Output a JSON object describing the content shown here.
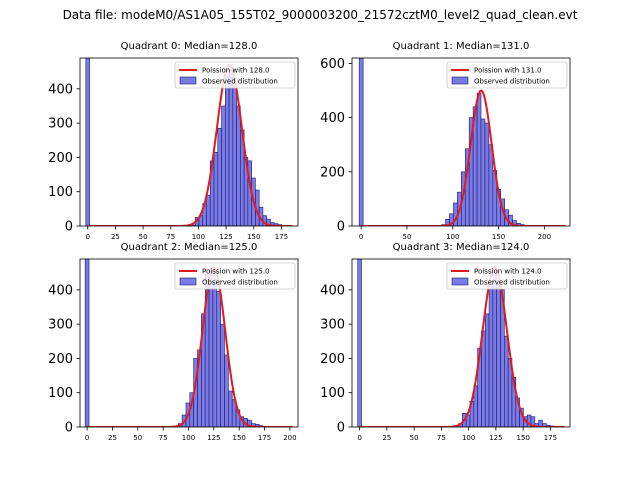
{
  "figure": {
    "suptitle": "Data file: modeM0/AS1A05_155T02_9000003200_21572cztM0_level2_quad_clean.evt"
  },
  "colors": {
    "bar_fill": "#7b7be6",
    "bar_edge": "#1a1a6e",
    "poisson_line": "#e31a1c",
    "axis": "#000000"
  },
  "chart_data": [
    {
      "type": "bar",
      "title": "Quadrant 0: Median=128.0",
      "xlim": [
        -7,
        190
      ],
      "ylim": [
        0,
        490
      ],
      "xticks": [
        0,
        25,
        50,
        75,
        100,
        125,
        150,
        175
      ],
      "yticks": [
        0,
        100,
        200,
        300,
        400
      ],
      "bin_width": 3.4,
      "legend": {
        "location": "top-right",
        "line_label": "Poission with 128.0",
        "bar_label": "Observed distribution"
      },
      "poisson_mean": 128,
      "poisson_peak": 470,
      "bins": [
        {
          "x": 0,
          "count": 490
        },
        {
          "x": 92,
          "count": 1
        },
        {
          "x": 95.4,
          "count": 3
        },
        {
          "x": 98.8,
          "count": 25
        },
        {
          "x": 102.2,
          "count": 30
        },
        {
          "x": 105.6,
          "count": 65
        },
        {
          "x": 109,
          "count": 90
        },
        {
          "x": 112.4,
          "count": 190
        },
        {
          "x": 115.8,
          "count": 215
        },
        {
          "x": 119.2,
          "count": 285
        },
        {
          "x": 122.6,
          "count": 350
        },
        {
          "x": 126,
          "count": 440
        },
        {
          "x": 129.4,
          "count": 470
        },
        {
          "x": 132.8,
          "count": 410
        },
        {
          "x": 136.2,
          "count": 350
        },
        {
          "x": 139.6,
          "count": 280
        },
        {
          "x": 143,
          "count": 200
        },
        {
          "x": 146.4,
          "count": 190
        },
        {
          "x": 149.8,
          "count": 140
        },
        {
          "x": 153.2,
          "count": 105
        },
        {
          "x": 156.6,
          "count": 55
        },
        {
          "x": 160,
          "count": 30
        },
        {
          "x": 163.4,
          "count": 20
        },
        {
          "x": 166.8,
          "count": 10
        },
        {
          "x": 170.2,
          "count": 7
        },
        {
          "x": 173.6,
          "count": 4
        },
        {
          "x": 177,
          "count": 2
        }
      ]
    },
    {
      "type": "bar",
      "title": "Quadrant 1: Median=131.0",
      "xlim": [
        -10,
        228
      ],
      "ylim": [
        0,
        620
      ],
      "xticks": [
        0,
        50,
        100,
        150,
        200
      ],
      "yticks": [
        0,
        200,
        400,
        600
      ],
      "bin_width": 4.3,
      "legend": {
        "location": "top-right",
        "line_label": "Poission with 131.0",
        "bar_label": "Observed distribution"
      },
      "poisson_mean": 131,
      "poisson_peak": 500,
      "bins": [
        {
          "x": 0,
          "count": 620
        },
        {
          "x": 90,
          "count": 5
        },
        {
          "x": 94.3,
          "count": 25
        },
        {
          "x": 98.6,
          "count": 45
        },
        {
          "x": 102.9,
          "count": 85
        },
        {
          "x": 107.2,
          "count": 125
        },
        {
          "x": 111.5,
          "count": 200
        },
        {
          "x": 115.8,
          "count": 285
        },
        {
          "x": 120.1,
          "count": 400
        },
        {
          "x": 124.4,
          "count": 440
        },
        {
          "x": 128.7,
          "count": 490
        },
        {
          "x": 133,
          "count": 395
        },
        {
          "x": 137.3,
          "count": 380
        },
        {
          "x": 141.6,
          "count": 300
        },
        {
          "x": 145.9,
          "count": 205
        },
        {
          "x": 150.2,
          "count": 135
        },
        {
          "x": 154.5,
          "count": 100
        },
        {
          "x": 158.8,
          "count": 60
        },
        {
          "x": 163.1,
          "count": 40
        },
        {
          "x": 167.4,
          "count": 20
        },
        {
          "x": 171.7,
          "count": 10
        },
        {
          "x": 176,
          "count": 5
        },
        {
          "x": 180.3,
          "count": 2
        }
      ]
    },
    {
      "type": "bar",
      "title": "Quadrant 2: Median=125.0",
      "xlim": [
        -7,
        208
      ],
      "ylim": [
        0,
        490
      ],
      "xticks": [
        0,
        25,
        50,
        75,
        100,
        125,
        150,
        175,
        200
      ],
      "yticks": [
        0,
        100,
        200,
        300,
        400
      ],
      "bin_width": 3.8,
      "legend": {
        "location": "top-right",
        "line_label": "Poission with 125.0",
        "bar_label": "Observed distribution"
      },
      "poisson_mean": 125,
      "poisson_peak": 465,
      "bins": [
        {
          "x": 0,
          "count": 490
        },
        {
          "x": 88,
          "count": 3
        },
        {
          "x": 91.8,
          "count": 10
        },
        {
          "x": 95.6,
          "count": 35
        },
        {
          "x": 99.4,
          "count": 70
        },
        {
          "x": 103.2,
          "count": 100
        },
        {
          "x": 107,
          "count": 200
        },
        {
          "x": 110.8,
          "count": 225
        },
        {
          "x": 114.6,
          "count": 330
        },
        {
          "x": 118.4,
          "count": 445
        },
        {
          "x": 122.2,
          "count": 460
        },
        {
          "x": 126,
          "count": 430
        },
        {
          "x": 129.8,
          "count": 395
        },
        {
          "x": 133.6,
          "count": 300
        },
        {
          "x": 137.4,
          "count": 210
        },
        {
          "x": 141.2,
          "count": 105
        },
        {
          "x": 145,
          "count": 80
        },
        {
          "x": 148.8,
          "count": 50
        },
        {
          "x": 152.6,
          "count": 30
        },
        {
          "x": 156.4,
          "count": 25
        },
        {
          "x": 160.2,
          "count": 20
        },
        {
          "x": 164,
          "count": 10
        },
        {
          "x": 167.8,
          "count": 8
        },
        {
          "x": 171.6,
          "count": 4
        },
        {
          "x": 175.4,
          "count": 2
        },
        {
          "x": 183,
          "count": 2
        },
        {
          "x": 190.6,
          "count": 1
        }
      ]
    },
    {
      "type": "bar",
      "title": "Quadrant 3: Median=124.0",
      "xlim": [
        -7,
        193
      ],
      "ylim": [
        0,
        490
      ],
      "xticks": [
        0,
        25,
        50,
        75,
        100,
        125,
        150,
        175
      ],
      "yticks": [
        0,
        100,
        200,
        300,
        400
      ],
      "bin_width": 3.5,
      "legend": {
        "location": "top-right",
        "line_label": "Poission with 124.0",
        "bar_label": "Observed distribution"
      },
      "poisson_mean": 124,
      "poisson_peak": 465,
      "bins": [
        {
          "x": 0,
          "count": 490
        },
        {
          "x": 89,
          "count": 5
        },
        {
          "x": 92.5,
          "count": 10
        },
        {
          "x": 96,
          "count": 40
        },
        {
          "x": 99.5,
          "count": 35
        },
        {
          "x": 103,
          "count": 75
        },
        {
          "x": 106.5,
          "count": 120
        },
        {
          "x": 110,
          "count": 230
        },
        {
          "x": 113.5,
          "count": 280
        },
        {
          "x": 117,
          "count": 330
        },
        {
          "x": 120.5,
          "count": 425
        },
        {
          "x": 124,
          "count": 455
        },
        {
          "x": 127.5,
          "count": 410
        },
        {
          "x": 131,
          "count": 400
        },
        {
          "x": 134.5,
          "count": 265
        },
        {
          "x": 138,
          "count": 200
        },
        {
          "x": 141.5,
          "count": 145
        },
        {
          "x": 145,
          "count": 85
        },
        {
          "x": 148.5,
          "count": 55
        },
        {
          "x": 152,
          "count": 30
        },
        {
          "x": 155.5,
          "count": 35
        },
        {
          "x": 159,
          "count": 30
        },
        {
          "x": 162.5,
          "count": 10
        },
        {
          "x": 166,
          "count": 20
        },
        {
          "x": 169.5,
          "count": 10
        },
        {
          "x": 173,
          "count": 5
        },
        {
          "x": 176.5,
          "count": 3
        }
      ]
    }
  ]
}
